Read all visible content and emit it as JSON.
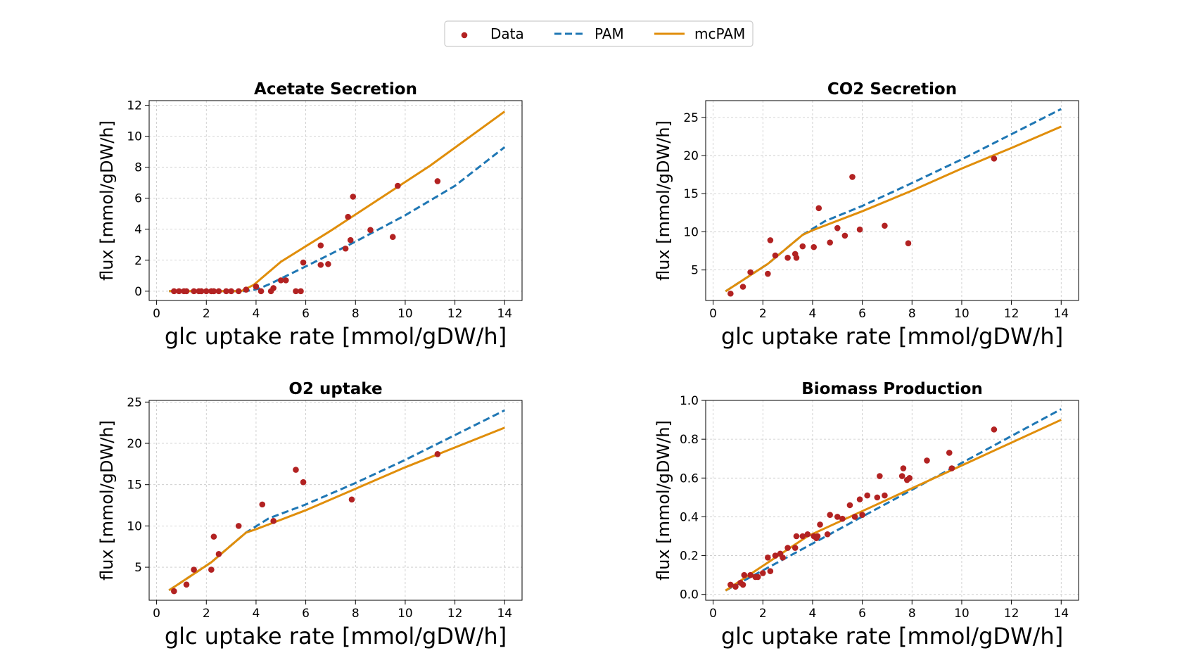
{
  "legend": {
    "items": [
      {
        "label": "Data",
        "kind": "marker"
      },
      {
        "label": "PAM",
        "kind": "dashed-line"
      },
      {
        "label": "mcPAM",
        "kind": "solid-line"
      }
    ]
  },
  "colors": {
    "data": "#b22222",
    "pam": "#1f77b4",
    "mcpam": "#e08e0b"
  },
  "chart_data": [
    {
      "type": "scatter",
      "title": "Acetate Secretion",
      "xlabel": "glc uptake rate [mmol/gDW/h]",
      "ylabel": "flux [mmol/gDW/h]",
      "xlim": [
        -0.3,
        14.7
      ],
      "ylim": [
        -0.6,
        12.3
      ],
      "xticks": [
        0,
        2,
        4,
        6,
        8,
        10,
        12,
        14
      ],
      "yticks": [
        0,
        2,
        4,
        6,
        8,
        10,
        12
      ],
      "grid": true,
      "series": [
        {
          "name": "Data",
          "kind": "scatter",
          "points": [
            [
              0.7,
              0
            ],
            [
              0.9,
              0
            ],
            [
              1.1,
              0
            ],
            [
              1.2,
              0
            ],
            [
              1.5,
              0
            ],
            [
              1.7,
              0
            ],
            [
              1.8,
              0
            ],
            [
              2.0,
              0
            ],
            [
              2.2,
              0
            ],
            [
              2.3,
              0
            ],
            [
              2.5,
              0
            ],
            [
              2.8,
              0
            ],
            [
              3.0,
              0
            ],
            [
              3.3,
              0
            ],
            [
              3.6,
              0.1
            ],
            [
              4.0,
              0.3
            ],
            [
              4.2,
              0
            ],
            [
              4.6,
              0
            ],
            [
              4.7,
              0.2
            ],
            [
              5.0,
              0.7
            ],
            [
              5.2,
              0.7
            ],
            [
              5.6,
              0
            ],
            [
              5.8,
              0
            ],
            [
              5.9,
              1.85
            ],
            [
              6.6,
              1.7
            ],
            [
              6.6,
              2.95
            ],
            [
              6.9,
              1.75
            ],
            [
              7.6,
              2.75
            ],
            [
              7.7,
              4.8
            ],
            [
              7.8,
              3.3
            ],
            [
              7.9,
              6.1
            ],
            [
              8.6,
              3.95
            ],
            [
              9.5,
              3.5
            ],
            [
              9.7,
              6.8
            ],
            [
              11.3,
              7.1
            ]
          ]
        },
        {
          "name": "PAM",
          "kind": "dashed",
          "points": [
            [
              0.5,
              0
            ],
            [
              3.6,
              0
            ],
            [
              4.1,
              0.15
            ],
            [
              4.6,
              0.5
            ],
            [
              6.0,
              1.6
            ],
            [
              8.0,
              3.2
            ],
            [
              10.0,
              4.9
            ],
            [
              12.0,
              6.8
            ],
            [
              14.0,
              9.3
            ]
          ]
        },
        {
          "name": "mcPAM",
          "kind": "solid",
          "points": [
            [
              0.5,
              0
            ],
            [
              3.4,
              0
            ],
            [
              3.9,
              0.4
            ],
            [
              5.0,
              1.9
            ],
            [
              7.0,
              3.9
            ],
            [
              9.0,
              6.0
            ],
            [
              11.0,
              8.1
            ],
            [
              14.0,
              11.6
            ]
          ]
        }
      ]
    },
    {
      "type": "scatter",
      "title": "CO2 Secretion",
      "xlabel": "glc uptake rate [mmol/gDW/h]",
      "ylabel": "flux [mmol/gDW/h]",
      "xlim": [
        -0.3,
        14.7
      ],
      "ylim": [
        1.0,
        27.2
      ],
      "xticks": [
        0,
        2,
        4,
        6,
        8,
        10,
        12,
        14
      ],
      "yticks": [
        5,
        10,
        15,
        20,
        25
      ],
      "grid": true,
      "series": [
        {
          "name": "Data",
          "kind": "scatter",
          "points": [
            [
              0.7,
              1.9
            ],
            [
              1.2,
              2.8
            ],
            [
              1.5,
              4.7
            ],
            [
              2.2,
              4.5
            ],
            [
              2.3,
              8.9
            ],
            [
              2.5,
              6.9
            ],
            [
              3.0,
              6.6
            ],
            [
              3.3,
              7.1
            ],
            [
              3.35,
              6.6
            ],
            [
              3.6,
              8.1
            ],
            [
              4.05,
              8.0
            ],
            [
              4.25,
              13.1
            ],
            [
              4.7,
              8.6
            ],
            [
              5.0,
              10.5
            ],
            [
              5.3,
              9.5
            ],
            [
              5.6,
              17.2
            ],
            [
              5.9,
              10.3
            ],
            [
              6.9,
              10.8
            ],
            [
              7.85,
              8.5
            ],
            [
              11.3,
              19.6
            ]
          ]
        },
        {
          "name": "PAM",
          "kind": "dashed",
          "points": [
            [
              0.5,
              2.2
            ],
            [
              2.2,
              5.8
            ],
            [
              3.6,
              9.6
            ],
            [
              4.5,
              11.4
            ],
            [
              6.0,
              13.4
            ],
            [
              8.0,
              16.4
            ],
            [
              10.0,
              19.5
            ],
            [
              12.0,
              22.8
            ],
            [
              14.0,
              26.1
            ]
          ]
        },
        {
          "name": "mcPAM",
          "kind": "solid",
          "points": [
            [
              0.5,
              2.2
            ],
            [
              2.2,
              5.8
            ],
            [
              3.6,
              9.6
            ],
            [
              4.0,
              10.2
            ],
            [
              6.0,
              12.7
            ],
            [
              8.0,
              15.4
            ],
            [
              10.0,
              18.3
            ],
            [
              12.0,
              21.0
            ],
            [
              14.0,
              23.8
            ]
          ]
        }
      ]
    },
    {
      "type": "scatter",
      "title": "O2 uptake",
      "xlabel": "glc uptake rate [mmol/gDW/h]",
      "ylabel": "flux [mmol/gDW/h]",
      "xlim": [
        -0.3,
        14.7
      ],
      "ylim": [
        1.0,
        25.2
      ],
      "xticks": [
        0,
        2,
        4,
        6,
        8,
        10,
        12,
        14
      ],
      "yticks": [
        5,
        10,
        15,
        20,
        25
      ],
      "grid": true,
      "series": [
        {
          "name": "Data",
          "kind": "scatter",
          "points": [
            [
              0.7,
              2.1
            ],
            [
              1.2,
              2.9
            ],
            [
              1.5,
              4.7
            ],
            [
              2.2,
              4.7
            ],
            [
              2.3,
              8.7
            ],
            [
              2.5,
              6.6
            ],
            [
              3.3,
              10.0
            ],
            [
              4.25,
              12.6
            ],
            [
              4.7,
              10.6
            ],
            [
              5.6,
              16.8
            ],
            [
              5.9,
              15.3
            ],
            [
              7.85,
              13.2
            ],
            [
              11.3,
              18.7
            ]
          ]
        },
        {
          "name": "PAM",
          "kind": "dashed",
          "points": [
            [
              0.5,
              2.2
            ],
            [
              2.2,
              5.6
            ],
            [
              3.6,
              9.2
            ],
            [
              4.5,
              10.9
            ],
            [
              6.0,
              12.6
            ],
            [
              8.0,
              15.2
            ],
            [
              10.0,
              18.0
            ],
            [
              12.0,
              21.0
            ],
            [
              14.0,
              24.0
            ]
          ]
        },
        {
          "name": "mcPAM",
          "kind": "solid",
          "points": [
            [
              0.5,
              2.2
            ],
            [
              2.2,
              5.6
            ],
            [
              3.6,
              9.2
            ],
            [
              4.0,
              9.6
            ],
            [
              6.0,
              11.9
            ],
            [
              8.0,
              14.5
            ],
            [
              10.0,
              17.1
            ],
            [
              12.0,
              19.5
            ],
            [
              14.0,
              21.9
            ]
          ]
        }
      ]
    },
    {
      "type": "scatter",
      "title": "Biomass Production",
      "xlabel": "glc uptake rate [mmol/gDW/h]",
      "ylabel": "flux [mmol/gDW/h]",
      "xlim": [
        -0.3,
        14.7
      ],
      "ylim": [
        -0.03,
        1.0
      ],
      "xticks": [
        0,
        2,
        4,
        6,
        8,
        10,
        12,
        14
      ],
      "yticks": [
        0.0,
        0.2,
        0.4,
        0.6,
        0.8,
        1.0
      ],
      "ytick_labels": [
        "0.0",
        "0.2",
        "0.4",
        "0.6",
        "0.8",
        "1.0"
      ],
      "grid": true,
      "series": [
        {
          "name": "Data",
          "kind": "scatter",
          "points": [
            [
              0.7,
              0.05
            ],
            [
              0.9,
              0.04
            ],
            [
              1.1,
              0.06
            ],
            [
              1.2,
              0.05
            ],
            [
              1.25,
              0.1
            ],
            [
              1.5,
              0.1
            ],
            [
              1.7,
              0.09
            ],
            [
              1.8,
              0.09
            ],
            [
              2.0,
              0.11
            ],
            [
              2.2,
              0.19
            ],
            [
              2.3,
              0.12
            ],
            [
              2.5,
              0.2
            ],
            [
              2.7,
              0.21
            ],
            [
              2.8,
              0.19
            ],
            [
              3.0,
              0.24
            ],
            [
              3.3,
              0.24
            ],
            [
              3.35,
              0.3
            ],
            [
              3.6,
              0.3
            ],
            [
              3.8,
              0.31
            ],
            [
              4.05,
              0.3
            ],
            [
              4.15,
              0.29
            ],
            [
              4.2,
              0.3
            ],
            [
              4.3,
              0.36
            ],
            [
              4.6,
              0.31
            ],
            [
              4.7,
              0.41
            ],
            [
              5.0,
              0.4
            ],
            [
              5.2,
              0.39
            ],
            [
              5.5,
              0.46
            ],
            [
              5.7,
              0.4
            ],
            [
              5.9,
              0.49
            ],
            [
              6.0,
              0.41
            ],
            [
              6.2,
              0.51
            ],
            [
              6.6,
              0.5
            ],
            [
              6.7,
              0.61
            ],
            [
              6.9,
              0.51
            ],
            [
              7.6,
              0.61
            ],
            [
              7.65,
              0.65
            ],
            [
              7.8,
              0.59
            ],
            [
              7.9,
              0.6
            ],
            [
              8.6,
              0.69
            ],
            [
              9.5,
              0.73
            ],
            [
              9.6,
              0.65
            ],
            [
              11.3,
              0.85
            ]
          ]
        },
        {
          "name": "PAM",
          "kind": "dashed",
          "points": [
            [
              0.5,
              0.02
            ],
            [
              14.0,
              0.955
            ]
          ]
        },
        {
          "name": "mcPAM",
          "kind": "solid",
          "points": [
            [
              0.5,
              0.02
            ],
            [
              3.8,
              0.3
            ],
            [
              14.0,
              0.9
            ]
          ]
        }
      ]
    }
  ]
}
